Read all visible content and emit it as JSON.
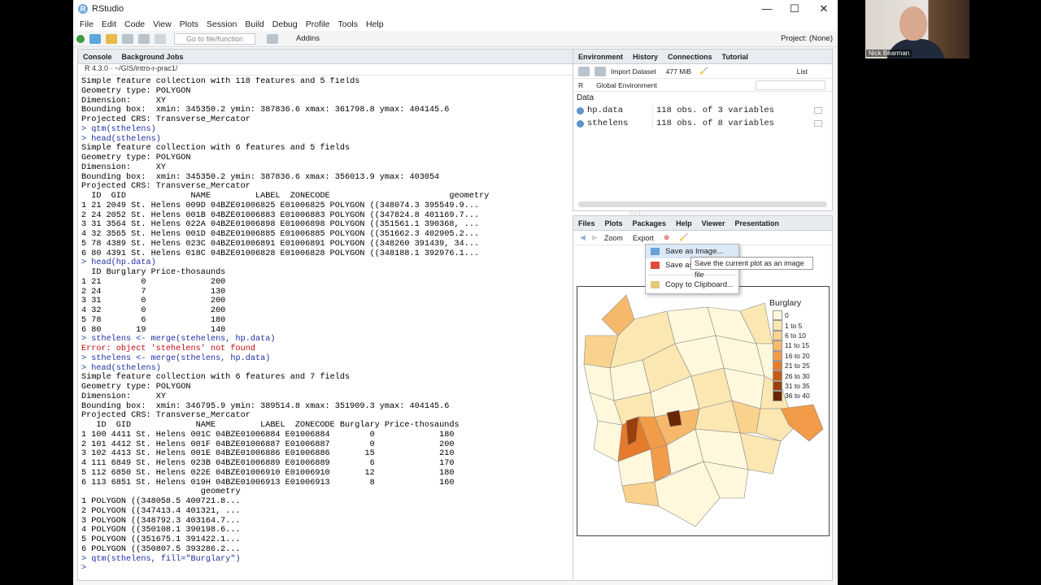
{
  "window": {
    "title": "RStudio",
    "minimize": "—",
    "maximize": "☐",
    "close": "✕"
  },
  "menu": [
    "File",
    "Edit",
    "Code",
    "View",
    "Plots",
    "Session",
    "Build",
    "Debug",
    "Profile",
    "Tools",
    "Help"
  ],
  "toolbar": {
    "goto_placeholder": "Go to file/function",
    "addins": "Addins",
    "project": "Project: (None)"
  },
  "console": {
    "tabs": [
      "Console",
      "Background Jobs"
    ],
    "path": "R 4.3.0 · ~/GIS/intro-r-prac1/",
    "lines": [
      {
        "t": "Simple feature collection with 118 features and 5 fields",
        "k": "out"
      },
      {
        "t": "Geometry type: POLYGON",
        "k": "out"
      },
      {
        "t": "Dimension:     XY",
        "k": "out"
      },
      {
        "t": "Bounding box:  xmin: 345350.2 ymin: 387836.6 xmax: 361798.8 ymax: 404145.6",
        "k": "out"
      },
      {
        "t": "Projected CRS: Transverse_Mercator",
        "k": "out"
      },
      {
        "t": "> qtm(sthelens)",
        "k": "cmd"
      },
      {
        "t": "> head(sthelens)",
        "k": "cmd"
      },
      {
        "t": "Simple feature collection with 6 features and 5 fields",
        "k": "out"
      },
      {
        "t": "Geometry type: POLYGON",
        "k": "out"
      },
      {
        "t": "Dimension:     XY",
        "k": "out"
      },
      {
        "t": "Bounding box:  xmin: 345350.2 ymin: 387836.6 xmax: 356013.9 ymax: 403054",
        "k": "out"
      },
      {
        "t": "Projected CRS: Transverse_Mercator",
        "k": "out"
      },
      {
        "t": "  ID  GID             NAME         LABEL  ZONECODE                        geometry",
        "k": "out"
      },
      {
        "t": "1 21 2049 St. Helens 009D 04BZE01006825 E01006825 POLYGON ((348074.3 395549.9...",
        "k": "out"
      },
      {
        "t": "2 24 2052 St. Helens 001B 04BZE01006883 E01006883 POLYGON ((347824.8 401169.7...",
        "k": "out"
      },
      {
        "t": "3 31 3564 St. Helens 022A 04BZE01006898 E01006898 POLYGON ((351561.1 390368, ...",
        "k": "out"
      },
      {
        "t": "4 32 3565 St. Helens 001D 04BZE01006885 E01006885 POLYGON ((351662.3 402905.2...",
        "k": "out"
      },
      {
        "t": "5 78 4389 St. Helens 023C 04BZE01006891 E01006891 POLYGON ((348260 391439, 34...",
        "k": "out"
      },
      {
        "t": "6 80 4391 St. Helens 018C 04BZE01006828 E01006828 POLYGON ((348188.1 392976.1...",
        "k": "out"
      },
      {
        "t": "> head(hp.data)",
        "k": "cmd"
      },
      {
        "t": "  ID Burglary Price-thosaunds",
        "k": "out"
      },
      {
        "t": "1 21        0             200",
        "k": "out"
      },
      {
        "t": "2 24        7             130",
        "k": "out"
      },
      {
        "t": "3 31        0             200",
        "k": "out"
      },
      {
        "t": "4 32        0             200",
        "k": "out"
      },
      {
        "t": "5 78        6             180",
        "k": "out"
      },
      {
        "t": "6 80       19             140",
        "k": "out"
      },
      {
        "t": "> sthelens <- merge(stehelens, hp.data)",
        "k": "cmd"
      },
      {
        "t": "Error: object 'stehelens' not found",
        "k": "err"
      },
      {
        "t": "> sthelens <- merge(sthelens, hp.data)",
        "k": "cmd"
      },
      {
        "t": "> head(sthelens)",
        "k": "cmd"
      },
      {
        "t": "Simple feature collection with 6 features and 7 fields",
        "k": "out"
      },
      {
        "t": "Geometry type: POLYGON",
        "k": "out"
      },
      {
        "t": "Dimension:     XY",
        "k": "out"
      },
      {
        "t": "Bounding box:  xmin: 346795.9 ymin: 389514.8 xmax: 351909.3 ymax: 404145.6",
        "k": "out"
      },
      {
        "t": "Projected CRS: Transverse_Mercator",
        "k": "out"
      },
      {
        "t": "   ID  GID             NAME         LABEL  ZONECODE Burglary Price-thosaunds",
        "k": "out"
      },
      {
        "t": "1 100 4411 St. Helens 001C 04BZE01006884 E01006884        0             180",
        "k": "out"
      },
      {
        "t": "2 101 4412 St. Helens 001F 04BZE01006887 E01006887        0             200",
        "k": "out"
      },
      {
        "t": "3 102 4413 St. Helens 001E 04BZE01006886 E01006886       15             210",
        "k": "out"
      },
      {
        "t": "4 111 6849 St. Helens 023B 04BZE01006889 E01006889        6             170",
        "k": "out"
      },
      {
        "t": "5 112 6850 St. Helens 022E 04BZE01006910 E01006910       12             180",
        "k": "out"
      },
      {
        "t": "6 113 6851 St. Helens 019H 04BZE01006913 E01006913        8             160",
        "k": "out"
      },
      {
        "t": "                        geometry",
        "k": "out"
      },
      {
        "t": "1 POLYGON ((348058.5 400721.8...",
        "k": "out"
      },
      {
        "t": "2 POLYGON ((347413.4 401321, ...",
        "k": "out"
      },
      {
        "t": "3 POLYGON ((348792.3 403164.7...",
        "k": "out"
      },
      {
        "t": "4 POLYGON ((350108.1 390198.6...",
        "k": "out"
      },
      {
        "t": "5 POLYGON ((351675.1 391422.1...",
        "k": "out"
      },
      {
        "t": "6 POLYGON ((350807.5 393286.2...",
        "k": "out"
      },
      {
        "t": "> qtm(sthelens, fill=\"Burglary\")",
        "k": "cmd"
      },
      {
        "t": "> ",
        "k": "cmd"
      }
    ]
  },
  "environment": {
    "tabs": [
      "Environment",
      "History",
      "Connections",
      "Tutorial"
    ],
    "import": "Import Dataset",
    "memory": "477 MiB",
    "view": "List",
    "lang": "R",
    "scope": "Global Environment",
    "section": "Data",
    "rows": [
      {
        "name": "hp.data",
        "value": "118 obs. of 3 variables"
      },
      {
        "name": "sthelens",
        "value": "118 obs. of 8 variables"
      }
    ]
  },
  "plots": {
    "tabs": [
      "Files",
      "Plots",
      "Packages",
      "Help",
      "Viewer",
      "Presentation"
    ],
    "zoom": "Zoom",
    "export": "Export",
    "menu": [
      "Save as Image...",
      "Save as",
      "Copy to Clipboard..."
    ],
    "tooltip": "Save the current plot as an image file",
    "legend_title": "Burglary",
    "legend": [
      {
        "label": "0",
        "color": "#fff8dc"
      },
      {
        "label": "1 to 5",
        "color": "#fbe7b1"
      },
      {
        "label": "6 to 10",
        "color": "#f9d28e"
      },
      {
        "label": "11 to 15",
        "color": "#f6b96b"
      },
      {
        "label": "16 to 20",
        "color": "#f29b48"
      },
      {
        "label": "21 to 25",
        "color": "#e67a2a"
      },
      {
        "label": "26 to 30",
        "color": "#c95a14"
      },
      {
        "label": "31 to 35",
        "color": "#9c3f0a"
      },
      {
        "label": "36 to 40",
        "color": "#6b2506"
      }
    ]
  },
  "webcam": {
    "name": "Nick Bearman"
  }
}
